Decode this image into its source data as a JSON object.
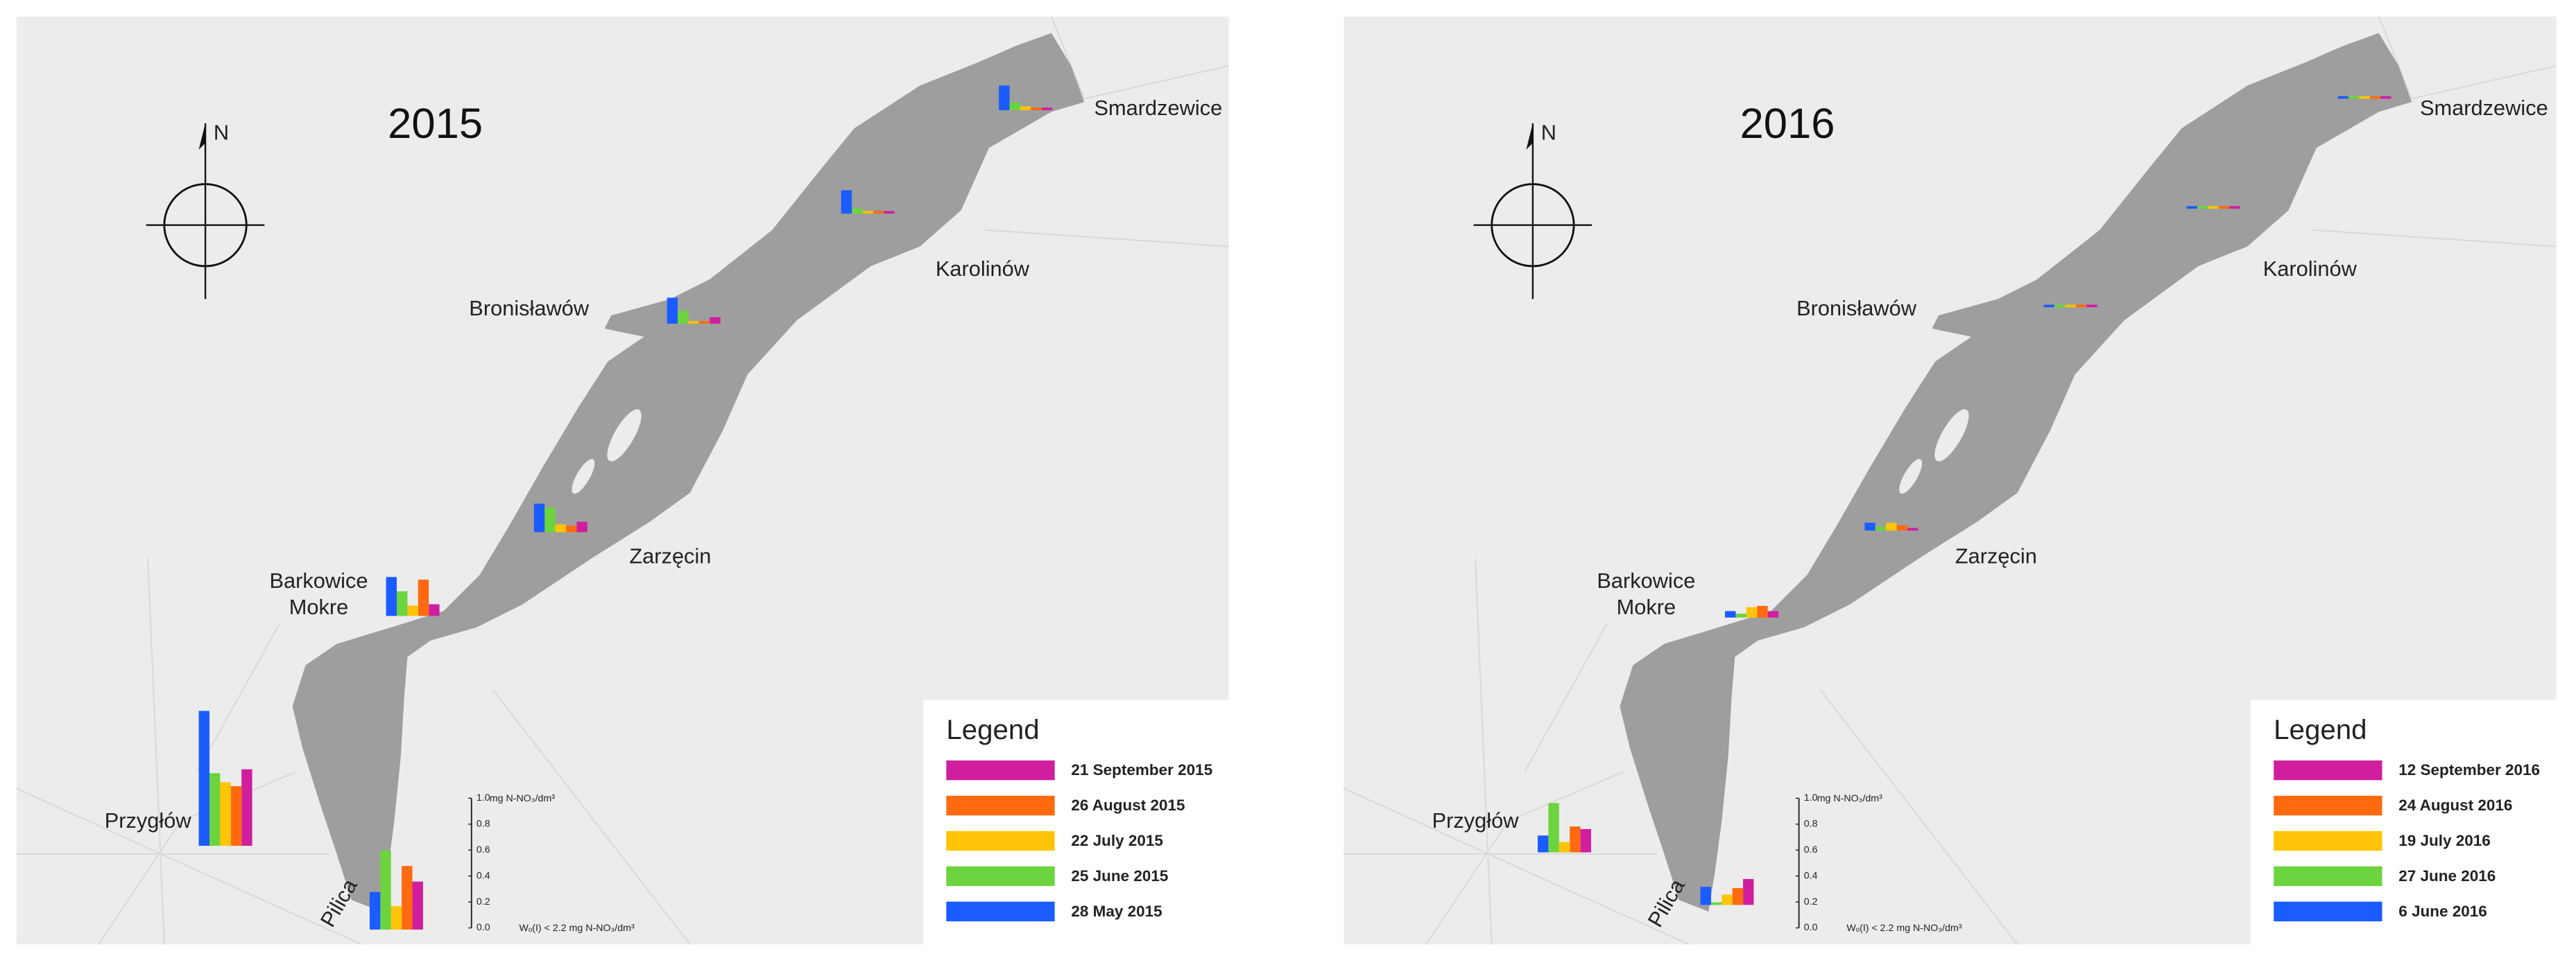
{
  "panels": [
    {
      "year": "2015",
      "compass_label": "N",
      "places": [
        "Smardzewice",
        "Karolinów",
        "Bronisławów",
        "Zarzęcin",
        "Barkowice",
        "Mokre",
        "Przygłów",
        "Pilica"
      ],
      "stations": [
        [
          0.02,
          0.02,
          0.03,
          0.06,
          0.19
        ],
        [
          0.02,
          0.02,
          0.02,
          0.04,
          0.18
        ],
        [
          0.05,
          0.02,
          0.02,
          0.1,
          0.2
        ],
        [
          0.08,
          0.05,
          0.06,
          0.19,
          0.22
        ],
        [
          0.09,
          0.28,
          0.08,
          0.19,
          0.3
        ],
        [
          0.59,
          0.46,
          0.49,
          0.56,
          1.04
        ],
        [
          0.37,
          0.49,
          0.18,
          0.61,
          0.29
        ]
      ],
      "scale": {
        "unit": "mg N-NO₃/dm³",
        "lim": [
          0,
          1
        ],
        "ticks": [
          {
            "value": 0,
            "label": "0.0"
          },
          0.2,
          0.4,
          0.6,
          0.8,
          {
            "value": 1,
            "label": "1.0"
          }
        ],
        "note": "Wₒ(I) < 2.2 mg N-NO₃/dm³"
      },
      "legend": {
        "title": "Legend",
        "items": [
          {
            "label": "21 September 2015",
            "color": "#cf1f9f"
          },
          {
            "label": "26 August 2015",
            "color": "#ff6a10"
          },
          {
            "label": "22 July 2015",
            "color": "#ffc408"
          },
          {
            "label": "25 June 2015",
            "color": "#6cd43e"
          },
          {
            "label": "28 May 2015",
            "color": "#1a5cff"
          }
        ]
      }
    },
    {
      "year": "2016",
      "compass_label": "N",
      "places": [
        "Smardzewice",
        "Karolinów",
        "Bronisławów",
        "Zarzęcin",
        "Barkowice",
        "Mokre",
        "Przygłów",
        "Pilica"
      ],
      "stations": [
        [
          0.02,
          0.02,
          0.02,
          0.02,
          0.02
        ],
        [
          0.02,
          0.02,
          0.02,
          0.02,
          0.02
        ],
        [
          0.02,
          0.02,
          0.02,
          0.02,
          0.02
        ],
        [
          0.02,
          0.04,
          0.06,
          0.03,
          0.06
        ],
        [
          0.05,
          0.09,
          0.08,
          0.03,
          0.05
        ],
        [
          0.18,
          0.2,
          0.08,
          0.38,
          0.13
        ],
        [
          0.2,
          0.13,
          0.08,
          0.02,
          0.14
        ]
      ],
      "scale": {
        "unit": "mg N-NO₃/dm³",
        "lim": [
          0,
          1
        ],
        "ticks": [
          {
            "value": 0,
            "label": "0.0"
          },
          0.2,
          0.4,
          0.6,
          0.8,
          {
            "value": 1,
            "label": "1.0"
          }
        ],
        "note": "Wₒ(I) < 2.2 mg N-NO₃/dm³"
      },
      "legend": {
        "title": "Legend",
        "items": [
          {
            "label": "12 September 2016",
            "color": "#cf1f9f"
          },
          {
            "label": "24 August 2016",
            "color": "#ff6a10"
          },
          {
            "label": "19 July 2016",
            "color": "#ffc408"
          },
          {
            "label": "27 June 2016",
            "color": "#6cd43e"
          },
          {
            "label": "6 June 2016",
            "color": "#1a5cff"
          }
        ]
      }
    }
  ]
}
